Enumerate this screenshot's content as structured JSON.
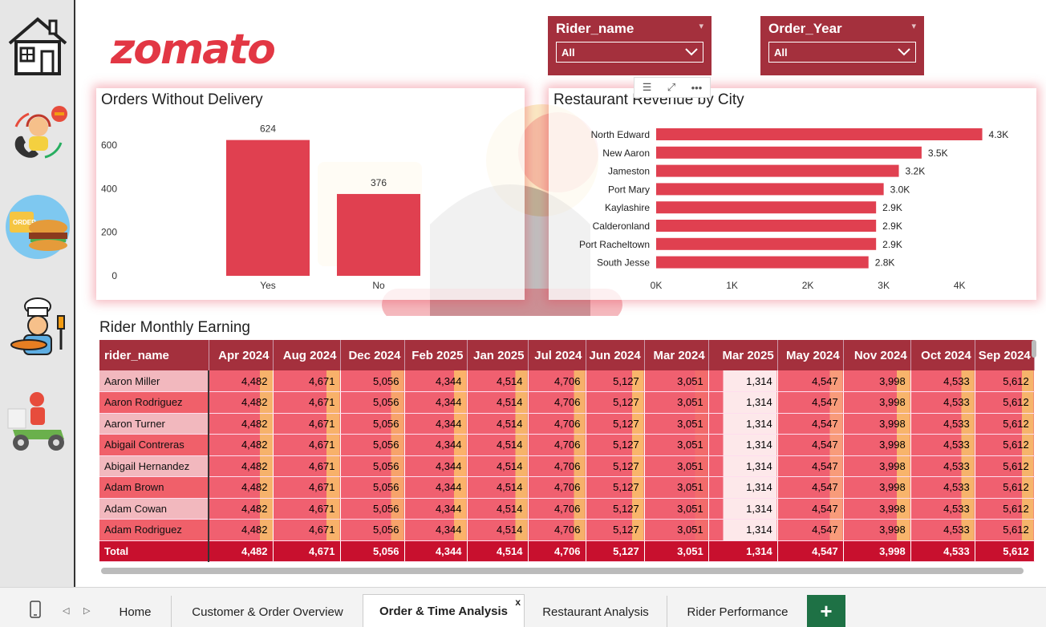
{
  "brand": {
    "logo_text": "zomato",
    "accent": "#e23744",
    "slicer_bg": "#a4303d",
    "total_bg": "#c8102e"
  },
  "sidebar": {
    "items": [
      {
        "name": "home-icon"
      },
      {
        "name": "customer-service-icon"
      },
      {
        "name": "food-order-icon"
      },
      {
        "name": "chef-icon"
      },
      {
        "name": "delivery-rider-icon"
      }
    ]
  },
  "slicers": [
    {
      "title": "Rider_name",
      "value": "All"
    },
    {
      "title": "Order_Year",
      "value": "All"
    }
  ],
  "toolbar": {
    "filter_icon": "☰",
    "focus_icon": "⤢",
    "more_icon": "•••"
  },
  "orders_chart": {
    "title": "Orders Without Delivery",
    "chart_data": {
      "type": "bar",
      "title": "Orders Without Delivery",
      "categories": [
        "Yes",
        "No"
      ],
      "values": [
        624,
        376
      ],
      "data_labels": [
        "624",
        "376"
      ],
      "yticks": [
        "0",
        "200",
        "400",
        "600"
      ],
      "ylim": [
        0,
        700
      ],
      "color": "#e04050"
    }
  },
  "revenue_chart": {
    "title": "Restaurant Revenue by City",
    "chart_data": {
      "type": "bar",
      "orientation": "horizontal",
      "title": "Restaurant Revenue by City",
      "categories": [
        "North Edward",
        "New Aaron",
        "Jameston",
        "Port Mary",
        "Kaylashire",
        "Calderonland",
        "Port Racheltown",
        "South Jesse"
      ],
      "values": [
        4300,
        3500,
        3200,
        3000,
        2900,
        2900,
        2900,
        2800
      ],
      "data_labels": [
        "4.3K",
        "3.5K",
        "3.2K",
        "3.0K",
        "2.9K",
        "2.9K",
        "2.9K",
        "2.8K"
      ],
      "xticks": [
        "0K",
        "1K",
        "2K",
        "3K",
        "4K"
      ],
      "xlim": [
        0,
        4400
      ],
      "color": "#e04050"
    }
  },
  "matrix": {
    "title": "Rider Monthly Earning",
    "columns": [
      "rider_name",
      "Apr 2024",
      "Aug 2024",
      "Dec 2024",
      "Feb 2025",
      "Jan 2025",
      "Jul 2024",
      "Jun 2024",
      "Mar 2024",
      "Mar 2025",
      "May 2024",
      "Nov 2024",
      "Oct 2024",
      "Sep 2024"
    ],
    "row_values": [
      "4,482",
      "4,671",
      "5,056",
      "4,344",
      "4,514",
      "4,706",
      "5,127",
      "3,051",
      "1,314",
      "4,547",
      "3,998",
      "4,533",
      "5,612"
    ],
    "rows": [
      "Aaron Miller",
      "Aaron Rodriguez",
      "Aaron Turner",
      "Abigail Contreras",
      "Abigail Hernandez",
      "Adam Brown",
      "Adam Cowan",
      "Adam Rodriguez"
    ],
    "total_label": "Total",
    "total_values": [
      "4,482",
      "4,671",
      "5,056",
      "4,344",
      "4,514",
      "4,706",
      "5,127",
      "3,051",
      "1,314",
      "4,547",
      "3,998",
      "4,533",
      "5,612"
    ]
  },
  "tabs": {
    "phone_icon": "phone-icon",
    "prev": "◁",
    "next": "▷",
    "items": [
      "Home",
      "Customer & Order Overview",
      "Order & Time Analysis",
      "Restaurant Analysis",
      "Rider Performance"
    ],
    "active": "Order & Time Analysis",
    "close": "x",
    "add": "+"
  }
}
